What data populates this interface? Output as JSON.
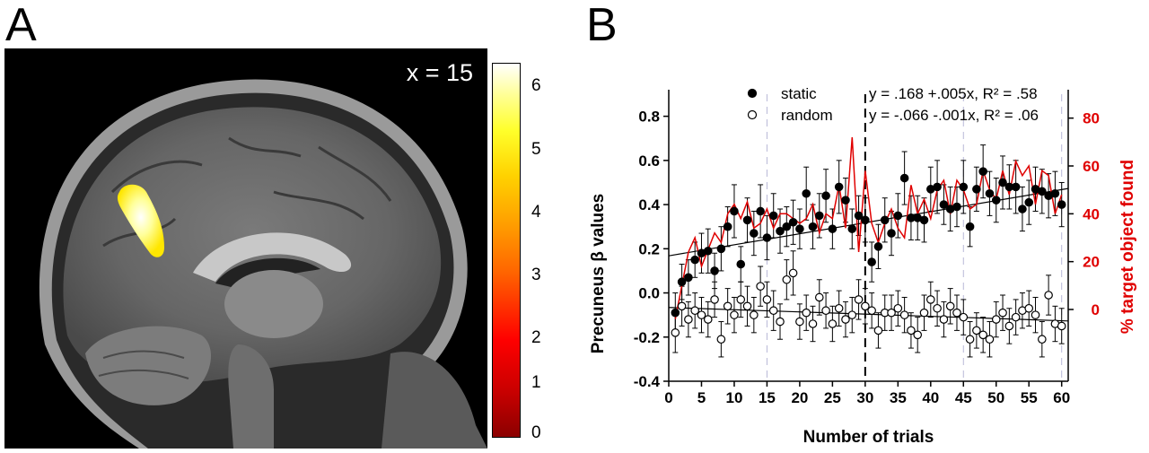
{
  "panels": {
    "a": {
      "letter": "A",
      "slice_label": "x = 15"
    },
    "b": {
      "letter": "B"
    }
  },
  "colorbar": {
    "ticks": [
      "6",
      "5",
      "4",
      "3",
      "2",
      "1",
      "0"
    ],
    "range": [
      0,
      6.5
    ]
  },
  "chart_data": {
    "type": "scatter",
    "xlabel": "Number of trials",
    "ylabel": "Precuneus β values",
    "y2label": "% target object found",
    "xlim": [
      0,
      61
    ],
    "ylim": [
      -0.4,
      0.9
    ],
    "y2lim": [
      -30,
      90
    ],
    "xticks": [
      "0",
      "5",
      "10",
      "15",
      "20",
      "25",
      "30",
      "35",
      "40",
      "45",
      "50",
      "55",
      "60"
    ],
    "yticks": [
      "-0.4",
      "-0.2",
      "0.0",
      "0.2",
      "0.4",
      "0.6",
      "0.8"
    ],
    "y2ticks": [
      "0",
      "20",
      "40",
      "60",
      "80"
    ],
    "dashed_x": [
      15,
      45,
      60
    ],
    "bold_dashed_x": [
      30
    ],
    "legend": [
      {
        "marker": "filled",
        "label": "static",
        "equation": "y = .168 +.005x, R² = .58"
      },
      {
        "marker": "open",
        "label": "random",
        "equation": "y = -.066 -.001x, R² = .06"
      }
    ],
    "x": [
      1,
      2,
      3,
      4,
      5,
      6,
      7,
      8,
      9,
      10,
      11,
      12,
      13,
      14,
      15,
      16,
      17,
      18,
      19,
      20,
      21,
      22,
      23,
      24,
      25,
      26,
      27,
      28,
      29,
      30,
      31,
      32,
      33,
      34,
      35,
      36,
      37,
      38,
      39,
      40,
      41,
      42,
      43,
      44,
      45,
      46,
      47,
      48,
      49,
      50,
      51,
      52,
      53,
      54,
      55,
      56,
      57,
      58,
      59,
      60
    ],
    "series": [
      {
        "name": "static",
        "marker": "filled",
        "values": [
          -0.09,
          0.05,
          0.07,
          0.15,
          0.18,
          0.19,
          0.1,
          0.2,
          0.3,
          0.37,
          0.13,
          0.33,
          0.27,
          0.37,
          0.25,
          0.35,
          0.28,
          0.3,
          0.32,
          0.29,
          0.45,
          0.3,
          0.35,
          0.44,
          0.29,
          0.48,
          0.42,
          0.29,
          0.35,
          0.33,
          0.14,
          0.21,
          0.33,
          0.27,
          0.35,
          0.52,
          0.34,
          0.34,
          0.33,
          0.47,
          0.48,
          0.4,
          0.38,
          0.39,
          0.48,
          0.3,
          0.47,
          0.55,
          0.45,
          0.42,
          0.5,
          0.48,
          0.48,
          0.38,
          0.41,
          0.47,
          0.46,
          0.44,
          0.45,
          0.4
        ],
        "errors": [
          0.09,
          0.08,
          0.08,
          0.08,
          0.09,
          0.1,
          0.08,
          0.1,
          0.09,
          0.12,
          0.08,
          0.1,
          0.1,
          0.12,
          0.1,
          0.1,
          0.1,
          0.09,
          0.1,
          0.09,
          0.12,
          0.1,
          0.1,
          0.12,
          0.09,
          0.12,
          0.1,
          0.09,
          0.09,
          0.1,
          0.09,
          0.1,
          0.1,
          0.1,
          0.1,
          0.12,
          0.1,
          0.1,
          0.1,
          0.1,
          0.12,
          0.09,
          0.1,
          0.09,
          0.12,
          0.09,
          0.1,
          0.12,
          0.1,
          0.1,
          0.12,
          0.1,
          0.12,
          0.1,
          0.1,
          0.1,
          0.1,
          0.1,
          0.1,
          0.1
        ]
      },
      {
        "name": "random",
        "marker": "open",
        "values": [
          -0.18,
          -0.06,
          -0.12,
          -0.08,
          -0.1,
          -0.12,
          -0.03,
          -0.21,
          -0.06,
          -0.1,
          -0.03,
          -0.06,
          -0.1,
          0.03,
          -0.03,
          -0.08,
          -0.13,
          0.06,
          0.09,
          -0.13,
          -0.09,
          -0.14,
          -0.02,
          -0.08,
          -0.14,
          -0.07,
          -0.12,
          -0.1,
          -0.03,
          -0.06,
          -0.08,
          -0.17,
          -0.09,
          -0.09,
          -0.07,
          -0.1,
          -0.17,
          -0.19,
          -0.09,
          -0.03,
          -0.07,
          -0.12,
          -0.06,
          -0.09,
          -0.11,
          -0.21,
          -0.17,
          -0.19,
          -0.21,
          -0.12,
          -0.09,
          -0.15,
          -0.11,
          -0.08,
          -0.07,
          -0.1,
          -0.21,
          -0.01,
          -0.14,
          -0.15
        ],
        "errors": [
          0.09,
          0.09,
          0.08,
          0.08,
          0.08,
          0.08,
          0.08,
          0.08,
          0.08,
          0.08,
          0.08,
          0.09,
          0.08,
          0.09,
          0.08,
          0.09,
          0.08,
          0.09,
          0.1,
          0.08,
          0.08,
          0.08,
          0.08,
          0.08,
          0.08,
          0.08,
          0.08,
          0.08,
          0.09,
          0.08,
          0.08,
          0.08,
          0.08,
          0.08,
          0.08,
          0.08,
          0.08,
          0.08,
          0.08,
          0.08,
          0.08,
          0.08,
          0.08,
          0.08,
          0.08,
          0.08,
          0.08,
          0.08,
          0.08,
          0.08,
          0.08,
          0.08,
          0.08,
          0.08,
          0.08,
          0.08,
          0.08,
          0.09,
          0.08,
          0.08
        ]
      },
      {
        "name": "% target object found",
        "marker": "line",
        "color": "#e00000",
        "axis": "right",
        "values": [
          -4,
          10,
          24,
          30,
          18,
          25,
          32,
          28,
          40,
          44,
          38,
          45,
          34,
          36,
          42,
          34,
          40,
          40,
          38,
          36,
          38,
          44,
          32,
          40,
          38,
          52,
          34,
          72,
          24,
          58,
          36,
          28,
          36,
          42,
          34,
          30,
          52,
          40,
          46,
          38,
          50,
          54,
          40,
          54,
          50,
          42,
          44,
          58,
          50,
          46,
          58,
          48,
          62,
          56,
          60,
          44,
          58,
          56,
          40,
          48
        ]
      }
    ],
    "fit_lines": [
      {
        "series": "static",
        "intercept": 0.168,
        "slope": 0.005
      },
      {
        "series": "random",
        "intercept": -0.066,
        "slope": -0.001
      }
    ]
  }
}
